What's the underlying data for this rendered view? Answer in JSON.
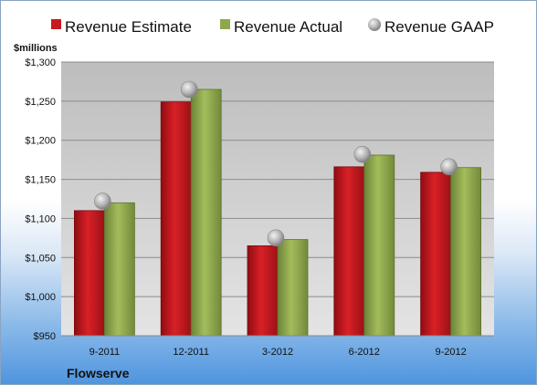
{
  "company": "Flowserve",
  "chart_data": {
    "type": "bar",
    "ylabel": "$millions",
    "ylim": [
      950,
      1300
    ],
    "yticks": [
      "$950",
      "$1,000",
      "$1,050",
      "$1,100",
      "$1,150",
      "$1,200",
      "$1,250",
      "$1,300"
    ],
    "ytick_values": [
      950,
      1000,
      1050,
      1100,
      1150,
      1200,
      1250,
      1300
    ],
    "categories": [
      "9-2011",
      "12-2011",
      "3-2012",
      "6-2012",
      "9-2012"
    ],
    "grid": true,
    "legend": "top",
    "series": [
      {
        "name": "Revenue Estimate",
        "kind": "bar",
        "color": "#c8191f",
        "values": [
          1110,
          1249,
          1065,
          1166,
          1159
        ]
      },
      {
        "name": "Revenue Actual",
        "kind": "bar",
        "color": "#8ea84d",
        "values": [
          1120,
          1265,
          1073,
          1181,
          1165
        ]
      },
      {
        "name": "Revenue GAAP",
        "kind": "marker",
        "color": "#a8a8a8",
        "values": [
          1122,
          1265,
          1075,
          1182,
          1166
        ]
      }
    ]
  }
}
